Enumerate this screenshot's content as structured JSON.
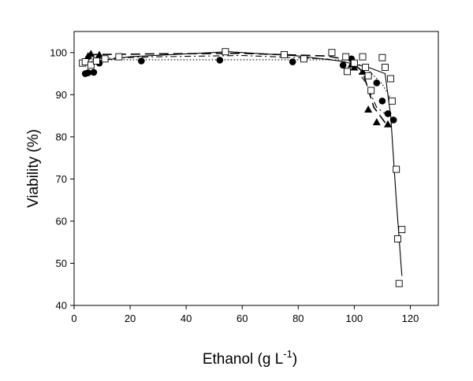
{
  "chart_data": {
    "type": "scatter",
    "xlabel": "Ethanol (g L",
    "xlabel_superscript": "-1",
    "xlabel_suffix": ")",
    "ylabel": "Viability (%)",
    "xlim": [
      0,
      130
    ],
    "ylim": [
      40,
      105
    ],
    "xticks": [
      0,
      20,
      40,
      60,
      80,
      100,
      120
    ],
    "yticks": [
      40,
      50,
      60,
      70,
      80,
      90,
      100
    ],
    "grid": false,
    "legend": "none",
    "series": [
      {
        "marker": "circle-filled",
        "color": "#000000",
        "points": [
          [
            4,
            95
          ],
          [
            5,
            95.2
          ],
          [
            7,
            95.3
          ],
          [
            9,
            97.5
          ],
          [
            24,
            98
          ],
          [
            52,
            98.2
          ],
          [
            78,
            97.8
          ],
          [
            96,
            97
          ],
          [
            99,
            98.5
          ],
          [
            108,
            92.8
          ],
          [
            110,
            88.5
          ],
          [
            112,
            85.5
          ],
          [
            114,
            84
          ]
        ]
      },
      {
        "marker": "triangle-filled",
        "color": "#000000",
        "points": [
          [
            5,
            99.2
          ],
          [
            6,
            99.7
          ],
          [
            9,
            99.5
          ],
          [
            99,
            97.2
          ],
          [
            100,
            96.5
          ],
          [
            103,
            95.5
          ],
          [
            105,
            86.5
          ],
          [
            108,
            83.5
          ],
          [
            112,
            83
          ]
        ]
      },
      {
        "marker": "square-open",
        "color": "#000000",
        "points": [
          [
            3,
            97.5
          ],
          [
            4,
            97.8
          ],
          [
            6,
            97
          ],
          [
            8,
            98
          ],
          [
            11,
            98.5
          ],
          [
            16,
            99
          ],
          [
            54,
            100.2
          ],
          [
            75,
            99.5
          ],
          [
            82,
            98.5
          ],
          [
            92,
            100
          ],
          [
            97,
            99
          ],
          [
            97.5,
            95.5
          ],
          [
            100,
            97.5
          ],
          [
            103,
            99
          ],
          [
            104,
            96.5
          ],
          [
            105,
            94.5
          ],
          [
            106,
            91
          ],
          [
            110,
            98.8
          ],
          [
            111,
            96.5
          ],
          [
            113,
            93.8
          ],
          [
            113.5,
            88.5
          ],
          [
            115,
            72.3
          ],
          [
            115.5,
            55.8
          ],
          [
            116,
            45.2
          ],
          [
            117,
            58
          ]
        ]
      }
    ],
    "fit_lines": [
      {
        "style": "solid",
        "points": [
          [
            3,
            97.5
          ],
          [
            20,
            99
          ],
          [
            55,
            100.2
          ],
          [
            80,
            99.2
          ],
          [
            95,
            98
          ],
          [
            105,
            96.5
          ],
          [
            111,
            95
          ],
          [
            113,
            85
          ],
          [
            115,
            65
          ],
          [
            117,
            47
          ]
        ]
      },
      {
        "style": "long-dash",
        "points": [
          [
            5,
            99.5
          ],
          [
            30,
            99.7
          ],
          [
            60,
            99.8
          ],
          [
            90,
            99.2
          ],
          [
            98,
            98.3
          ],
          [
            103,
            95.5
          ],
          [
            107,
            87
          ],
          [
            112,
            82.5
          ]
        ]
      },
      {
        "style": "dash-dot",
        "points": [
          [
            4,
            98.5
          ],
          [
            30,
            99
          ],
          [
            60,
            99.3
          ],
          [
            90,
            98.5
          ],
          [
            99,
            97.5
          ],
          [
            104,
            93
          ],
          [
            108,
            87
          ],
          [
            114,
            84
          ]
        ]
      },
      {
        "style": "dotted",
        "points": [
          [
            3,
            98.3
          ],
          [
            30,
            98.3
          ],
          [
            60,
            98.3
          ],
          [
            90,
            98.3
          ],
          [
            98,
            98.2
          ],
          [
            104,
            96.5
          ],
          [
            110,
            92.5
          ],
          [
            114,
            88
          ]
        ]
      }
    ]
  }
}
